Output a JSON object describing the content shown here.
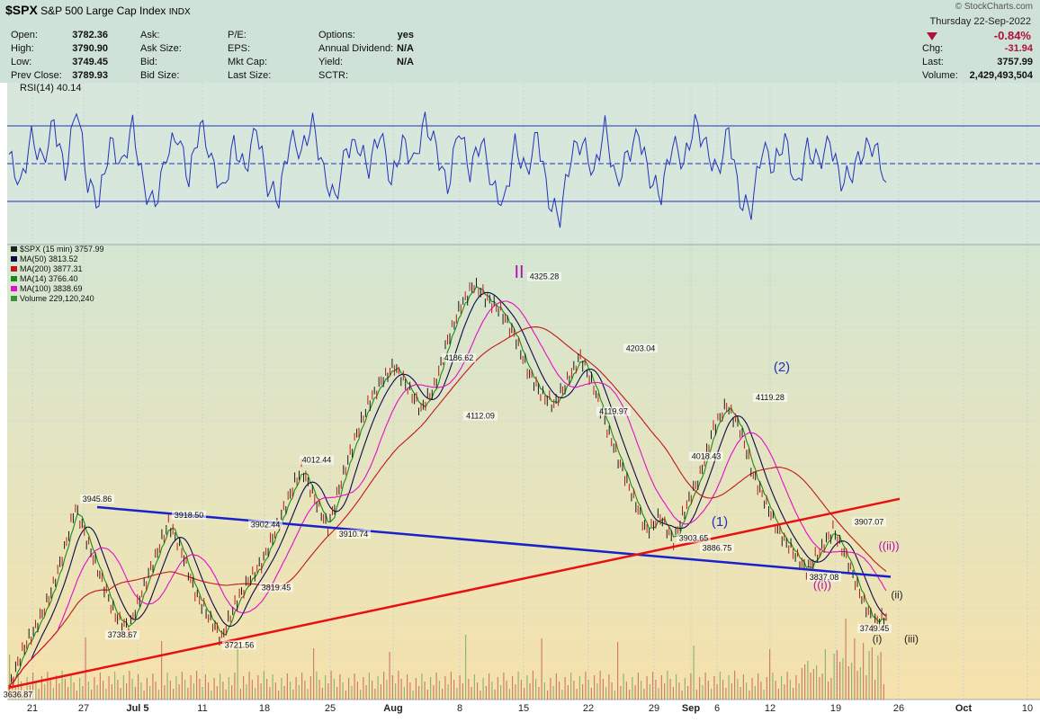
{
  "header": {
    "symbol": "$SPX",
    "name": "S&P 500 Large Cap Index",
    "exchange": "INDX",
    "date": "Thursday   22-Sep-2022",
    "brand": "© StockCharts.com",
    "change_pct": "-0.84%",
    "quote": [
      {
        "label": "Open:",
        "value": "3782.36"
      },
      {
        "label": "High:",
        "value": "3790.90"
      },
      {
        "label": "Low:",
        "value": "3749.45"
      },
      {
        "label": "Prev Close:",
        "value": "3789.93"
      }
    ],
    "col2": [
      {
        "label": "Ask:",
        "value": ""
      },
      {
        "label": "Ask Size:",
        "value": ""
      },
      {
        "label": "Bid:",
        "value": ""
      },
      {
        "label": "Bid Size:",
        "value": ""
      }
    ],
    "col3": [
      {
        "label": "P/E:",
        "value": ""
      },
      {
        "label": "EPS:",
        "value": ""
      },
      {
        "label": "Mkt Cap:",
        "value": ""
      },
      {
        "label": "Last Size:",
        "value": ""
      }
    ],
    "col4": [
      {
        "label": "Options:",
        "value": "yes"
      },
      {
        "label": "Annual Dividend:",
        "value": "N/A"
      },
      {
        "label": "Yield:",
        "value": "N/A"
      },
      {
        "label": "SCTR:",
        "value": ""
      }
    ],
    "right": [
      {
        "label": "Chg:",
        "value": "-31.94"
      },
      {
        "label": "Last:",
        "value": "3757.99"
      },
      {
        "label": "Volume:",
        "value": "2,429,493,504"
      }
    ]
  },
  "colors": {
    "header_bg": "#cfe2d8",
    "rsi_line": "#2233bb",
    "ma50": "#0a0a50",
    "ma200": "#c01818",
    "ma14": "#1a8a1a",
    "ma100": "#e010c8",
    "trend_blue": "#1822c8",
    "trend_red": "#e81010",
    "wave_label_blue": "#2233bb",
    "wave_label_magenta": "#b010b0"
  },
  "chart_data": [
    {
      "type": "line",
      "title": "RSI(14) 40.14",
      "indicator": "RSI(14)",
      "last_value": 40.14,
      "ylim": [
        10,
        90
      ],
      "reference_lines": [
        30,
        50,
        70
      ],
      "series": [
        {
          "name": "RSI(14)",
          "y": [
            55,
            38,
            64,
            50,
            72,
            44,
            82,
            40,
            30,
            62,
            48,
            70,
            36,
            28,
            55,
            66,
            42,
            72,
            52,
            34,
            60,
            46,
            70,
            38,
            32,
            64,
            56,
            72,
            44,
            30,
            58,
            60,
            48,
            68,
            40,
            62,
            50,
            72,
            58,
            36,
            70,
            46,
            64,
            38,
            28,
            60,
            44,
            66,
            30,
            22,
            56,
            62,
            44,
            70,
            38,
            54,
            66,
            42,
            34,
            62,
            50,
            72,
            58,
            44,
            68,
            30,
            26,
            60,
            48,
            64,
            36,
            58,
            50,
            62,
            40,
            46,
            58,
            60,
            40.14
          ]
        }
      ]
    },
    {
      "type": "line",
      "title": "$SPX (15 min) 3757.99",
      "last_value": 3757.99,
      "x_ticks": [
        "21",
        "27",
        "Jul 5",
        "11",
        "18",
        "25",
        "Aug",
        "8",
        "15",
        "22",
        "29",
        "Sep",
        "6",
        "12",
        "19",
        "26",
        "Oct",
        "10"
      ],
      "ylim": [
        3630,
        4360
      ],
      "series": [
        {
          "name": "$SPX (15 min)",
          "y": [
            3636.87,
            3700,
            3740,
            3790,
            3860,
            3945.86,
            3880,
            3820,
            3760,
            3738.67,
            3800,
            3860,
            3918.5,
            3870,
            3800,
            3760,
            3721.56,
            3780,
            3819.45,
            3850,
            3902.44,
            3960,
            4012.44,
            3960,
            3910.74,
            3990,
            4060,
            4120,
            4160,
            4186.62,
            4150,
            4112.09,
            4150,
            4230,
            4290,
            4325.28,
            4300,
            4280,
            4240,
            4180,
            4140,
            4119.97,
            4160,
            4203.04,
            4150,
            4080,
            4018.43,
            3960,
            3903.65,
            3930,
            3886.75,
            3950,
            4000,
            4080,
            4119.28,
            4080,
            4000,
            3950,
            3900,
            3870,
            3837.08,
            3870,
            3907.07,
            3860,
            3800,
            3749.45,
            3757.99
          ]
        },
        {
          "name": "MA(50)",
          "last_value": 3813.52
        },
        {
          "name": "MA(200)",
          "last_value": 3877.31
        },
        {
          "name": "MA(14)",
          "last_value": 3766.4
        },
        {
          "name": "MA(100)",
          "last_value": 3838.69
        },
        {
          "name": "Volume",
          "last_value": "229,120,240"
        }
      ],
      "annotations": [
        "3945.86",
        "3918.50",
        "3902.44",
        "3819.45",
        "3738.67",
        "3721.56",
        "3636.87",
        "4012.44",
        "3910.74",
        "4186.62",
        "4112.09",
        "4325.28",
        "4203.04",
        "4119.97",
        "4018.43",
        "3903.65",
        "3886.75",
        "4119.28",
        "3837.08",
        "3907.07",
        "3749.45",
        "3757.99"
      ],
      "wave_labels": [
        "II",
        "(2)",
        "(1)",
        "((i))",
        "((ii))",
        "(ii)",
        "(i)",
        "(iii)"
      ],
      "legend": [
        "$SPX (15 min) 3757.99",
        "MA(50) 3813.52",
        "MA(200) 3877.31",
        "MA(14) 3766.40",
        "MA(100) 3838.69",
        "Volume 229,120,240"
      ],
      "legend_position": "top-left",
      "grid": true
    }
  ]
}
